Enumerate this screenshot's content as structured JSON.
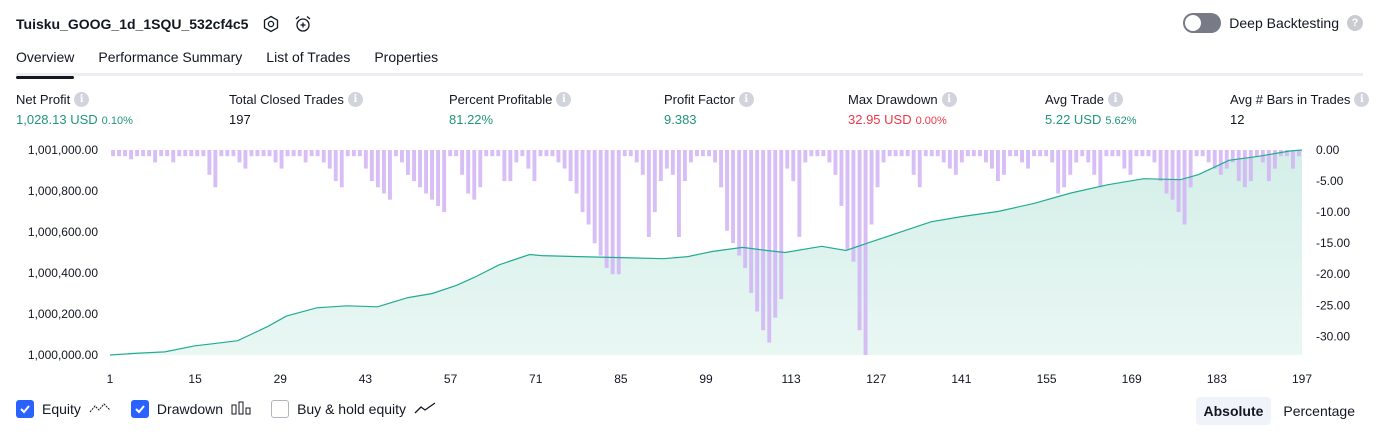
{
  "header": {
    "strategy_name": "Tuisku_GOOG_1d_1SQU_532cf4c5",
    "settings_icon": "settings-icon",
    "alert_icon": "add-alert-icon",
    "deep_backtesting_label": "Deep Backtesting",
    "deep_backtesting_on": false
  },
  "tabs": [
    {
      "label": "Overview",
      "active": true
    },
    {
      "label": "Performance Summary",
      "active": false
    },
    {
      "label": "List of Trades",
      "active": false
    },
    {
      "label": "Properties",
      "active": false
    }
  ],
  "metrics": {
    "net_profit": {
      "label": "Net Profit",
      "value": "1,028.13 USD",
      "sub": "0.10%"
    },
    "total_closed_trades": {
      "label": "Total Closed Trades",
      "value": "197"
    },
    "percent_profitable": {
      "label": "Percent Profitable",
      "value": "81.22%"
    },
    "profit_factor": {
      "label": "Profit Factor",
      "value": "9.383"
    },
    "max_drawdown": {
      "label": "Max Drawdown",
      "value": "32.95 USD",
      "sub": "0.00%"
    },
    "avg_trade": {
      "label": "Avg Trade",
      "value": "5.22 USD",
      "sub": "5.62%"
    },
    "avg_bars": {
      "label": "Avg # Bars in Trades",
      "value": "12"
    }
  },
  "legend": {
    "equity_label": "Equity",
    "equity_checked": true,
    "drawdown_label": "Drawdown",
    "drawdown_checked": true,
    "buyhold_label": "Buy & hold equity",
    "buyhold_checked": false
  },
  "scale": {
    "absolute_label": "Absolute",
    "percentage_label": "Percentage",
    "selected": "Absolute"
  },
  "colors": {
    "equity_line": "#22ab94",
    "equity_fill": "#d4efe8",
    "drawdown_bar": "#d1b3f5",
    "profit_green": "#22957a",
    "loss_red": "#f23645",
    "accent_blue": "#2962ff"
  },
  "chart_data": {
    "type": "area",
    "title": "",
    "x_ticks": [
      1,
      15,
      29,
      43,
      57,
      71,
      85,
      99,
      113,
      127,
      141,
      155,
      169,
      183,
      197
    ],
    "xlim": [
      1,
      197
    ],
    "left_axis": {
      "ticks": [
        "1,000,000.00",
        "1,000,200.00",
        "1,000,400.00",
        "1,000,600.00",
        "1,000,800.00",
        "1,001,000.00"
      ],
      "ylim": [
        1000000,
        1001000
      ]
    },
    "right_axis": {
      "ticks": [
        "0.00",
        "-5.00",
        "-10.00",
        "-15.00",
        "-20.00",
        "-25.00",
        "-30.00"
      ],
      "ylim": [
        -33,
        0
      ]
    },
    "series": [
      {
        "name": "Equity",
        "anchors_x": [
          1,
          5,
          10,
          15,
          18,
          22,
          27,
          30,
          35,
          40,
          45,
          50,
          54,
          58,
          61,
          65,
          70,
          72,
          78,
          85,
          92,
          96,
          100,
          105,
          109,
          112,
          118,
          122,
          126,
          130,
          136,
          141,
          147,
          153,
          159,
          165,
          171,
          177,
          180,
          185,
          190,
          195,
          197
        ],
        "anchors_y": [
          1000000,
          1000008,
          1000015,
          1000045,
          1000055,
          1000070,
          1000140,
          1000190,
          1000230,
          1000240,
          1000235,
          1000280,
          1000300,
          1000340,
          1000380,
          1000440,
          1000490,
          1000485,
          1000480,
          1000475,
          1000470,
          1000480,
          1000505,
          1000525,
          1000510,
          1000500,
          1000530,
          1000510,
          1000550,
          1000590,
          1000650,
          1000675,
          1000700,
          1000740,
          1000790,
          1000830,
          1000860,
          1000855,
          1000880,
          1000950,
          1000970,
          1000995,
          1001000
        ]
      },
      {
        "name": "Drawdown",
        "values": [
          -1,
          -1,
          -1,
          -1.5,
          -1,
          -1,
          -1,
          -2,
          -1,
          -1,
          -2,
          -1,
          -1,
          -1,
          -1,
          -1,
          -4,
          -6,
          -1,
          -1,
          -1,
          -2,
          -3,
          -1,
          -1,
          -1,
          -1,
          -2,
          -3,
          -1,
          -1,
          -1,
          -2,
          -1,
          -1,
          -2,
          -3,
          -5,
          -6,
          -1,
          -1,
          -1,
          -3,
          -5,
          -6,
          -7,
          -8,
          -1,
          -2,
          -4,
          -5,
          -6,
          -7,
          -8,
          -9,
          -10,
          -1,
          -1,
          -4,
          -7,
          -8,
          -6,
          -1,
          -1,
          -1,
          -5,
          -5,
          -2,
          -1,
          -3,
          -5,
          -1,
          -1,
          -1,
          -2,
          -3,
          -5,
          -7,
          -10,
          -12,
          -15,
          -17,
          -19,
          -20,
          -20,
          -1,
          -1,
          -2,
          -4,
          -14,
          -10,
          -5,
          -3,
          -4,
          -14,
          -5,
          -2,
          -1,
          -1,
          -1,
          -2,
          -6,
          -13,
          -15,
          -17,
          -19,
          -23,
          -26,
          -29,
          -31,
          -27,
          -24,
          -3,
          -5,
          -14,
          -2,
          -1,
          -1,
          -1,
          -2,
          -4,
          -9,
          -16,
          -18,
          -29,
          -33,
          -12,
          -6,
          -2,
          -1,
          -1,
          -1,
          -1,
          -4,
          -6,
          -1,
          -1,
          -1,
          -2,
          -3,
          -4,
          -2,
          -1,
          -1,
          -1,
          -2,
          -3,
          -5,
          -4,
          -1,
          -1,
          -2,
          -3,
          -1,
          -1,
          -1,
          -2,
          -7,
          -6,
          -4,
          -2,
          -1,
          -2,
          -4,
          -6,
          -1,
          -1,
          -1,
          -3,
          -4,
          -1,
          -1,
          -1,
          -2,
          -5,
          -7,
          -8,
          -10,
          -12,
          -6,
          -1,
          -1,
          -2,
          -3,
          -4,
          -3,
          -2,
          -5,
          -6,
          -5,
          -1,
          -2,
          -5,
          -3,
          -1,
          -1,
          -3,
          -1
        ]
      }
    ]
  }
}
